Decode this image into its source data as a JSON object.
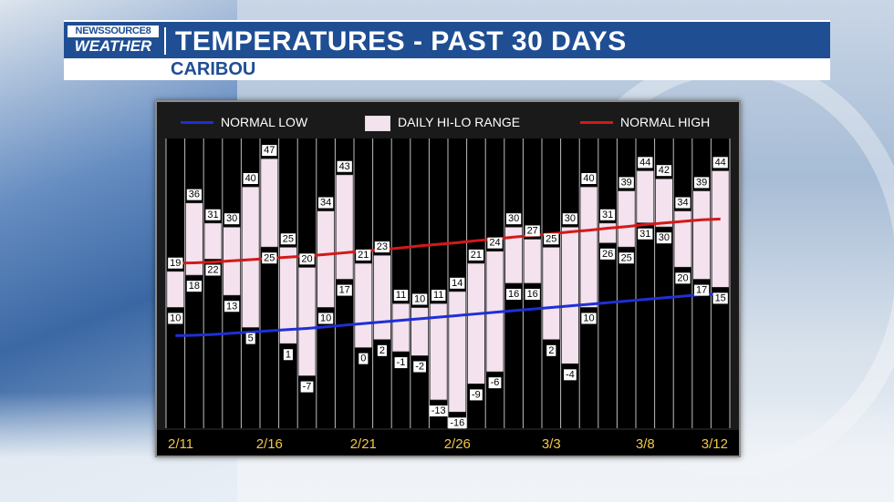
{
  "header": {
    "logo_top": "NEWSSOURCE8",
    "logo_bottom": "WEATHER",
    "title": "TEMPERATURES - PAST 30 DAYS",
    "subtitle": "CARIBOU"
  },
  "colors": {
    "brand_blue": "#1f4e93",
    "normal_low": "#1f2fd6",
    "normal_high": "#d31919",
    "range_fill": "#f4e2ee"
  },
  "legend": {
    "normal_low": "NORMAL LOW",
    "range": "DAILY HI-LO RANGE",
    "normal_high": "NORMAL HIGH"
  },
  "chart_data": {
    "type": "bar",
    "title": "TEMPERATURES - PAST 30 DAYS",
    "subtitle": "CARIBOU",
    "x_tick_labels": [
      "2/11",
      "2/16",
      "2/21",
      "2/26",
      "3/3",
      "3/8",
      "3/12"
    ],
    "x_tick_indices": [
      0,
      5,
      10,
      15,
      20,
      25,
      29
    ],
    "ylim": [
      -20,
      52
    ],
    "grid": true,
    "legend_position": "top",
    "series": [
      {
        "name": "DAILY HI-LO RANGE",
        "highs": [
          19,
          36,
          31,
          30,
          40,
          47,
          25,
          20,
          34,
          43,
          21,
          23,
          11,
          10,
          11,
          14,
          21,
          24,
          30,
          27,
          25,
          30,
          40,
          31,
          39,
          44,
          42,
          34,
          39,
          44
        ],
        "lows": [
          10,
          18,
          22,
          13,
          5,
          25,
          1,
          -7,
          10,
          17,
          0,
          2,
          -1,
          -2,
          -13,
          -16,
          -9,
          -6,
          16,
          16,
          2,
          -4,
          10,
          26,
          25,
          31,
          30,
          20,
          17,
          15
        ]
      },
      {
        "name": "NORMAL HIGH",
        "values": [
          21.0,
          21.1,
          21.3,
          21.6,
          21.9,
          22.2,
          22.5,
          22.8,
          23.2,
          23.6,
          24.0,
          24.4,
          24.8,
          25.3,
          25.7,
          26.1,
          26.6,
          27.0,
          27.5,
          27.9,
          28.3,
          28.8,
          29.2,
          29.7,
          30.1,
          30.6,
          31.0,
          31.4,
          31.8,
          32.0
        ]
      },
      {
        "name": "NORMAL LOW",
        "values": [
          3.0,
          3.1,
          3.3,
          3.6,
          3.9,
          4.2,
          4.5,
          4.8,
          5.2,
          5.6,
          6.0,
          6.4,
          6.8,
          7.2,
          7.6,
          8.0,
          8.4,
          8.8,
          9.2,
          9.6,
          10.0,
          10.4,
          10.8,
          11.2,
          11.6,
          12.0,
          12.4,
          12.8,
          13.2,
          13.4
        ]
      }
    ]
  }
}
